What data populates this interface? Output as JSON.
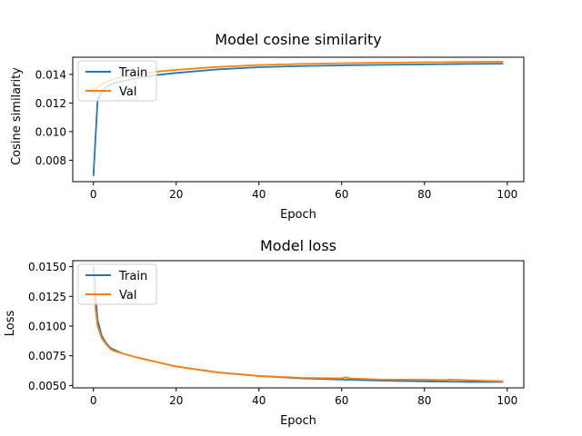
{
  "colors": {
    "train": "#1f77b4",
    "val": "#ff7f0e"
  },
  "chart_data": [
    {
      "type": "line",
      "title": "Model cosine similarity",
      "xlabel": "Epoch",
      "ylabel": "Cosine similarity",
      "xlim": [
        -5,
        104
      ],
      "ylim": [
        0.0065,
        0.0152
      ],
      "xticks": [
        0,
        20,
        40,
        60,
        80,
        100
      ],
      "xtick_labels": [
        "0",
        "20",
        "40",
        "60",
        "80",
        "100"
      ],
      "yticks": [
        0.008,
        0.01,
        0.012,
        0.014
      ],
      "ytick_labels": [
        "0.008",
        "0.010",
        "0.012",
        "0.014"
      ],
      "grid": false,
      "legend_position": "upper-left",
      "series": [
        {
          "name": "Train",
          "x": [
            0,
            1,
            2,
            3,
            5,
            10,
            15,
            20,
            30,
            40,
            50,
            60,
            70,
            80,
            90,
            99
          ],
          "y": [
            0.0069,
            0.0122,
            0.0128,
            0.0131,
            0.0134,
            0.0137,
            0.01395,
            0.0141,
            0.01435,
            0.0145,
            0.01458,
            0.01463,
            0.01467,
            0.0147,
            0.01473,
            0.01475
          ]
        },
        {
          "name": "Val",
          "x": [
            0,
            1,
            2,
            3,
            5,
            10,
            15,
            20,
            30,
            40,
            50,
            60,
            70,
            80,
            90,
            99
          ],
          "y": [
            0.0125,
            0.0131,
            0.0133,
            0.01345,
            0.0137,
            0.014,
            0.01418,
            0.01432,
            0.01452,
            0.01465,
            0.01473,
            0.01478,
            0.01482,
            0.01485,
            0.01487,
            0.01489
          ]
        }
      ]
    },
    {
      "type": "line",
      "title": "Model loss",
      "xlabel": "Epoch",
      "ylabel": "Loss",
      "xlim": [
        -5,
        104
      ],
      "ylim": [
        0.0048,
        0.0155
      ],
      "xticks": [
        0,
        20,
        40,
        60,
        80,
        100
      ],
      "xtick_labels": [
        "0",
        "20",
        "40",
        "60",
        "80",
        "100"
      ],
      "yticks": [
        0.005,
        0.0075,
        0.01,
        0.0125,
        0.015
      ],
      "ytick_labels": [
        "0.0050",
        "0.0075",
        "0.0100",
        "0.0125",
        "0.0150"
      ],
      "grid": false,
      "legend_position": "upper-left",
      "series": [
        {
          "name": "Train",
          "x": [
            0,
            1,
            2,
            3,
            4,
            5,
            7,
            10,
            15,
            20,
            30,
            40,
            50,
            60,
            70,
            80,
            90,
            99
          ],
          "y": [
            0.015,
            0.0105,
            0.0092,
            0.0086,
            0.0082,
            0.008,
            0.0077,
            0.0074,
            0.007,
            0.0066,
            0.0061,
            0.0058,
            0.0056,
            0.0055,
            0.0054,
            0.00535,
            0.0053,
            0.0053
          ]
        },
        {
          "name": "Val",
          "x": [
            0,
            1,
            2,
            3,
            4,
            5,
            7,
            10,
            15,
            20,
            30,
            40,
            50,
            60,
            61,
            62,
            70,
            80,
            85,
            86,
            90,
            99
          ],
          "y": [
            0.013,
            0.01,
            0.009,
            0.0085,
            0.0081,
            0.0079,
            0.0077,
            0.0074,
            0.007,
            0.0066,
            0.0061,
            0.0058,
            0.00565,
            0.0056,
            0.0057,
            0.0056,
            0.0055,
            0.0055,
            0.00545,
            0.0055,
            0.00545,
            0.00535
          ]
        }
      ]
    }
  ]
}
